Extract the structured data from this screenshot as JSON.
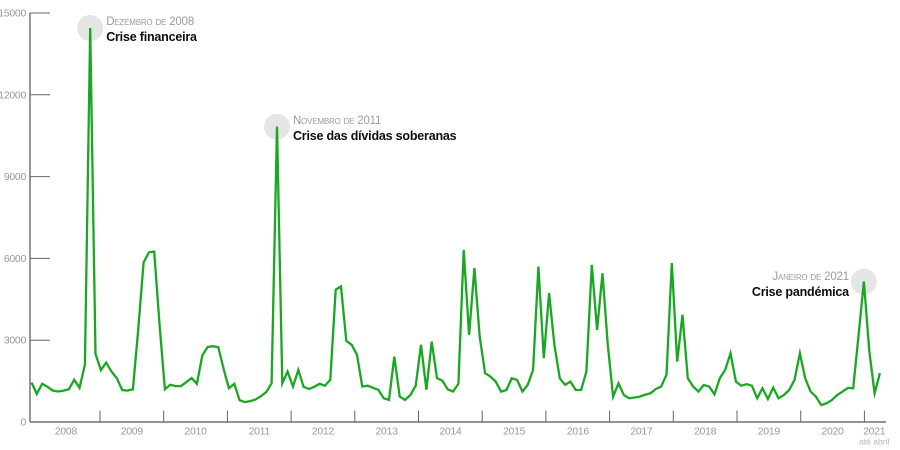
{
  "chart_data": {
    "type": "line",
    "title": "",
    "frequency": "monthly",
    "x_start": "2008-01",
    "x_end": "2021-04",
    "x_years": [
      2008,
      2009,
      2010,
      2011,
      2012,
      2013,
      2014,
      2015,
      2016,
      2017,
      2018,
      2019,
      2020,
      2021
    ],
    "x_axis_note": "até abril",
    "ylim": [
      0,
      15000
    ],
    "y_ticks": [
      0,
      3000,
      6000,
      9000,
      12000,
      15000
    ],
    "grid": "off",
    "legend": "none",
    "values": [
      1450,
      1030,
      1400,
      1290,
      1150,
      1120,
      1150,
      1200,
      1550,
      1250,
      2100,
      14450,
      2500,
      1900,
      2180,
      1850,
      1600,
      1175,
      1150,
      1200,
      3380,
      5850,
      6220,
      6250,
      3550,
      1200,
      1365,
      1315,
      1315,
      1460,
      1610,
      1400,
      2440,
      2750,
      2780,
      2745,
      1950,
      1240,
      1400,
      800,
      730,
      765,
      825,
      945,
      1100,
      1420,
      10830,
      1420,
      1850,
      1300,
      1910,
      1290,
      1210,
      1290,
      1400,
      1330,
      1550,
      4855,
      4970,
      2975,
      2830,
      2460,
      1300,
      1330,
      1255,
      1180,
      870,
      810,
      2400,
      930,
      810,
      990,
      1330,
      2830,
      1180,
      2950,
      1605,
      1520,
      1200,
      1114,
      1400,
      6310,
      3195,
      5643,
      3132,
      1790,
      1670,
      1480,
      1114,
      1175,
      1604,
      1543,
      1114,
      1359,
      1910,
      5704,
      2339,
      4726,
      2828,
      1604,
      1359,
      1480,
      1175,
      1175,
      1849,
      5766,
      3379,
      5459,
      2828,
      930,
      1420,
      990,
      870,
      900,
      930,
      1000,
      1053,
      1210,
      1297,
      1726,
      5827,
      2215,
      3930,
      1604,
      1297,
      1114,
      1359,
      1297,
      1015,
      1604,
      1910,
      2520,
      1480,
      1330,
      1385,
      1330,
      870,
      1236,
      845,
      1260,
      870,
      990,
      1175,
      1540,
      2520,
      1604,
      1114,
      930,
      624,
      686,
      808,
      990,
      1114,
      1250,
      1235,
      3200,
      5153,
      2600,
      1053,
      1790
    ],
    "annotations": [
      {
        "date_label": "Dezembro de 2008",
        "title": "Crise financeira",
        "month_index": 11,
        "align": "left"
      },
      {
        "date_label": "Novembro de 2011",
        "title": "Crise das dívidas soberanas",
        "month_index": 46,
        "align": "left"
      },
      {
        "date_label": "Janeiro de 2021",
        "title": "Crise pandémica",
        "month_index": 156,
        "align": "right"
      }
    ],
    "colors": {
      "line": "#1aa822",
      "annotation_circle": "#e5e5e5",
      "axis": "#555555",
      "tick": "#666666",
      "tick_label": "#999999",
      "annotation_date": "#9b9b9b",
      "annotation_title": "#0d0d0d",
      "note": "#b3b3b3"
    }
  }
}
